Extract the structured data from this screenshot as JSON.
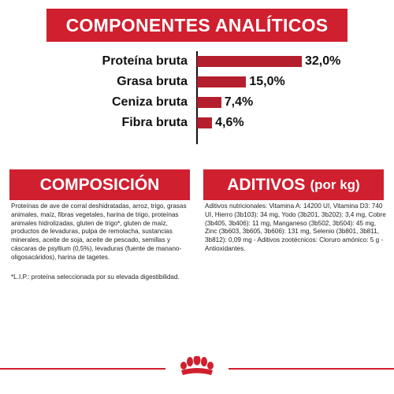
{
  "colors": {
    "brand_red": "#d01f2f",
    "bar_red": "#b51e2c"
  },
  "header": {
    "title": "COMPONENTES ANALÍTICOS"
  },
  "analytics": {
    "items": [
      {
        "label": "Proteína bruta",
        "value_label": "32,0%",
        "value": 32.0
      },
      {
        "label": "Grasa bruta",
        "value_label": "15,0%",
        "value": 15.0
      },
      {
        "label": "Ceniza bruta",
        "value_label": "7,4%",
        "value": 7.4
      },
      {
        "label": "Fibra bruta",
        "value_label": "4,6%",
        "value": 4.6
      }
    ]
  },
  "chart_data": {
    "type": "bar",
    "categories": [
      "Proteína bruta",
      "Grasa bruta",
      "Ceniza bruta",
      "Fibra bruta"
    ],
    "values": [
      32.0,
      15.0,
      7.4,
      4.6
    ],
    "value_labels": [
      "32,0%",
      "15,0%",
      "7,4%",
      "4,6%"
    ],
    "title": "COMPONENTES ANALÍTICOS",
    "orientation": "horizontal",
    "xlabel": "",
    "ylabel": "",
    "xlim": [
      0,
      32
    ],
    "grid": false
  },
  "composition": {
    "title": "COMPOSICIÓN",
    "text": "Proteínas de ave de corral deshidratadas, arroz, trigo, grasas animales, maíz, fibras vegetales, harina de trigo, proteínas animales hidrolizadas, gluten de trigo*, gluten de maíz, productos de levaduras, pulpa de remolacha, sustancias minerales, aceite de soja, aceite de pescado, semillas y cáscaras de psyllium (0,5%), levaduras (fuente de manano-oligosacáridos), harina de tagetes.",
    "note": "*L.I.P.: proteína seleccionada por su elevada digestibilidad."
  },
  "additives": {
    "title": "ADITIVOS",
    "title_unit": "(por kg)",
    "text": "Aditivos nutricionales: Vitamina A: 14200 UI, Vitamina D3: 740 UI, Hierro (3b103): 34 mg, Yodo (3b201, 3b202): 3,4 mg, Cobre (3b405, 3b406): 11 mg, Manganeso (3b502, 3b504): 45 mg, Zinc (3b603, 3b605, 3b606): 131 mg, Selenio (3b801, 3b811, 3b812): 0,09 mg - Aditivos zootécnicos: Cloruro amónico: 5 g - Antioxidantes."
  },
  "footer": {
    "logo_icon": "crown-icon"
  }
}
